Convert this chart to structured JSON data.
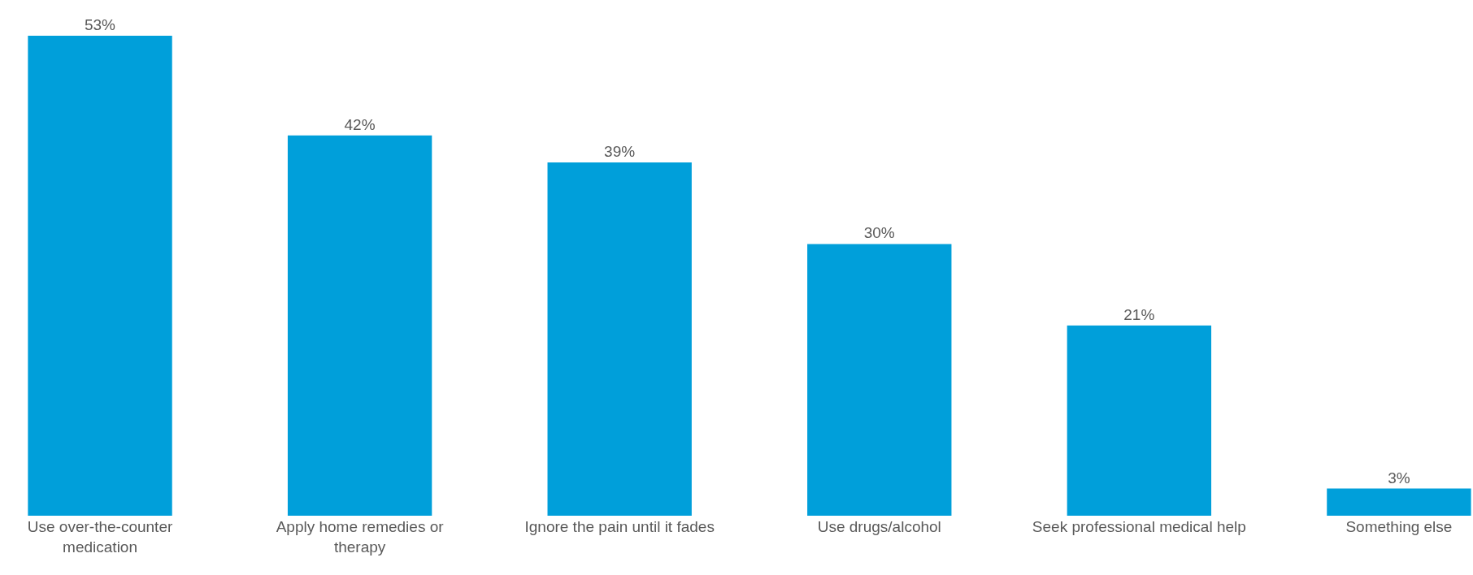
{
  "chart_data": {
    "type": "bar",
    "categories": [
      "Use over-the-counter\nmedication",
      "Apply home remedies or\ntherapy",
      "Ignore the pain until it fades",
      "Use drugs/alcohol",
      "Seek professional medical help",
      "Something else"
    ],
    "values": [
      53,
      42,
      39,
      30,
      21,
      3
    ],
    "value_labels": [
      "53%",
      "42%",
      "39%",
      "30%",
      "21%",
      "3%"
    ],
    "color": "#009fda",
    "grid": false,
    "legend": false
  }
}
